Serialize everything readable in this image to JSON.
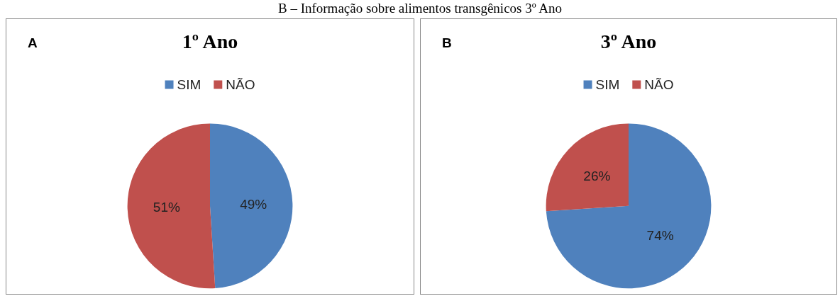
{
  "chart_data": [
    {
      "type": "pie",
      "title": "1º Ano",
      "annotations": [
        "A",
        "B – Informação sobre alimentos transgênicos 3º Ano"
      ],
      "categories": [
        "SIM",
        "NÃO"
      ],
      "values": [
        49,
        51
      ],
      "colors": [
        "#4f81bd",
        "#c0504d"
      ],
      "value_labels": [
        "49%",
        "51%"
      ],
      "legend": "top"
    },
    {
      "type": "pie",
      "title": "3º Ano",
      "annotations": [
        "B"
      ],
      "categories": [
        "SIM",
        "NÃO"
      ],
      "values": [
        74,
        26
      ],
      "colors": [
        "#4f81bd",
        "#c0504d"
      ],
      "value_labels": [
        "74%",
        "26%"
      ],
      "legend": "top"
    }
  ]
}
